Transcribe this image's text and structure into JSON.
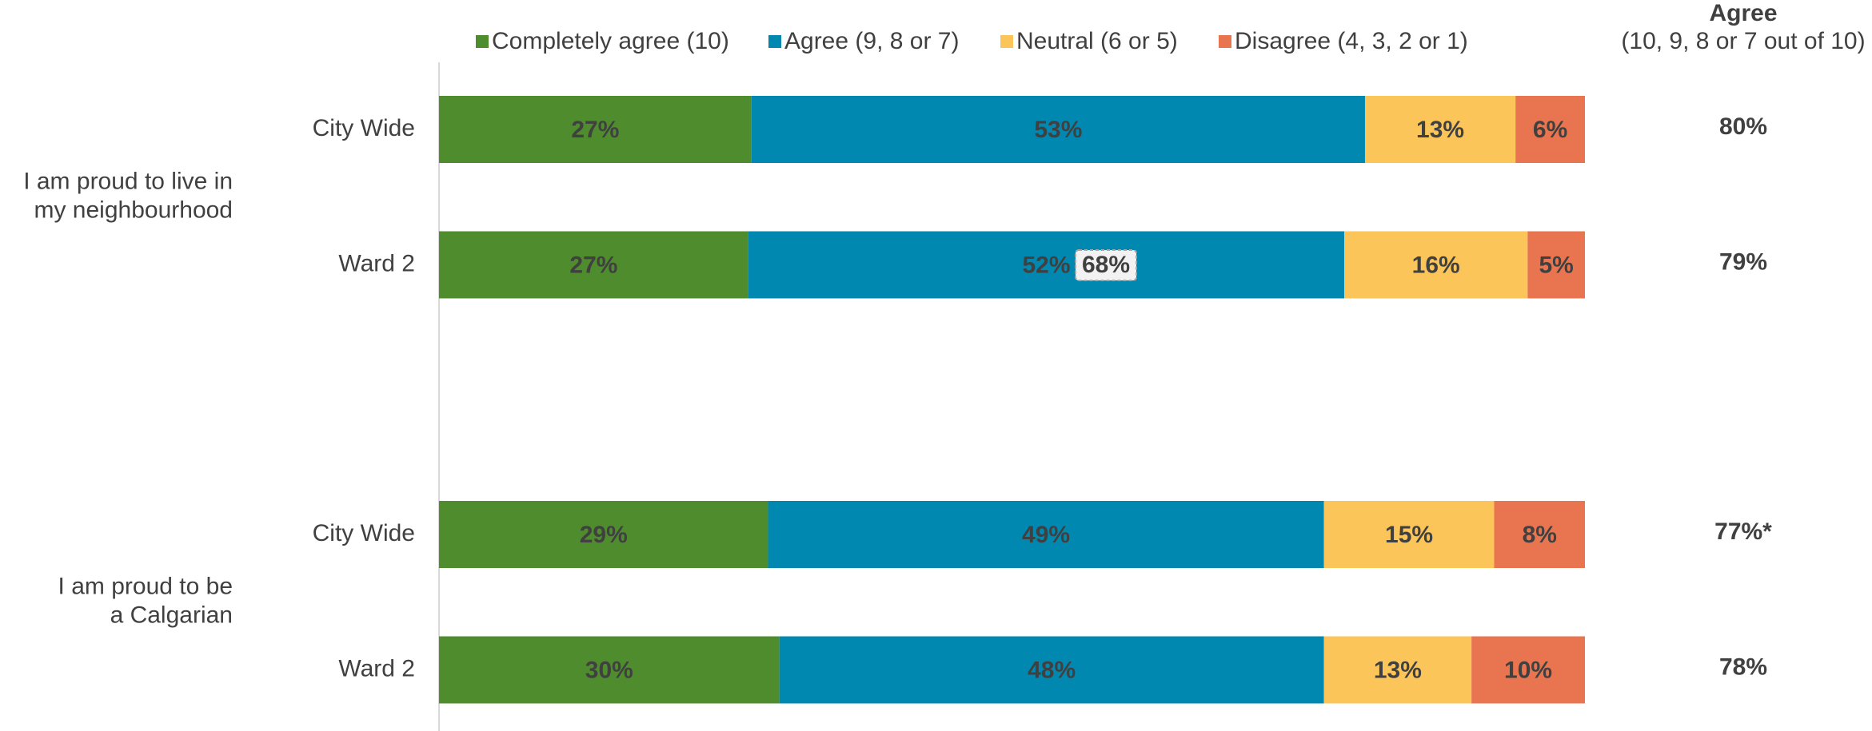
{
  "chart_data": {
    "type": "bar",
    "stacked": true,
    "normalized": true,
    "categories": [
      "City Wide",
      "Ward 2",
      "City Wide",
      "Ward 2"
    ],
    "groups": [
      [
        "I am proud to live in",
        "my neighbourhood"
      ],
      [
        "I am proud to be",
        "a Calgarian"
      ]
    ],
    "series": [
      {
        "name": "Completely agree (10)",
        "color": "#4e8c2e",
        "label_color": "#ffffff",
        "values": [
          27,
          27,
          29,
          30
        ],
        "value_labels": [
          "27%",
          "27%",
          "29%",
          "30%"
        ]
      },
      {
        "name": "Agree (9, 8 or 7)",
        "color": "#0088b0",
        "label_color": "#ffffff",
        "values": [
          53,
          52,
          49,
          48
        ],
        "value_labels": [
          "53%",
          "52%",
          "49%",
          "48%"
        ]
      },
      {
        "name": "Neutral (6 or 5)",
        "color": "#fcc55a",
        "label_color": "#404040",
        "values": [
          13,
          16,
          15,
          13
        ],
        "value_labels": [
          "13%",
          "16%",
          "15%",
          "13%"
        ]
      },
      {
        "name": "Disagree (4, 3, 2 or 1)",
        "color": "#e8754f",
        "label_color": "#ffffff",
        "values": [
          6,
          5,
          8,
          10
        ],
        "value_labels": [
          "6%",
          "5%",
          "8%",
          "10%"
        ]
      }
    ],
    "agree_title": "Agree",
    "agree_subtitle": "(10, 9, 8 or 7 out of 10)",
    "agree_values": [
      80,
      79,
      77,
      78
    ],
    "agree_value_labels": [
      "80%",
      "79%",
      "77%*",
      "78%"
    ],
    "annotation": "68%"
  }
}
